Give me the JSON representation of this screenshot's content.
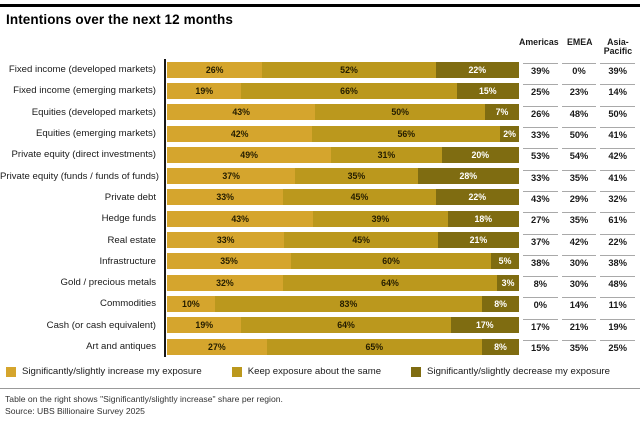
{
  "title": "Intentions over the next 12 months",
  "legend": [
    {
      "label": "Significantly/slightly increase my exposure",
      "color": "#D5A52D"
    },
    {
      "label": "Keep exposure about the same",
      "color": "#BB981D"
    },
    {
      "label": "Significantly/slightly decrease my exposure",
      "color": "#7F6C11"
    }
  ],
  "footnote": "Table on the right shows \"Significantly/slightly increase\" share per region.",
  "source": "Source: UBS Billionaire Survey 2025",
  "chart_data": {
    "type": "bar",
    "orientation": "horizontal-stacked",
    "title": "Intentions over the next 12 months",
    "categories": [
      "Fixed income (developed markets)",
      "Fixed income (emerging markets)",
      "Equities (developed markets)",
      "Equities (emerging markets)",
      "Private equity (direct investments)",
      "Private equity (funds / funds of funds)",
      "Private debt",
      "Hedge funds",
      "Real estate",
      "Infrastructure",
      "Gold / precious metals",
      "Commodities",
      "Cash (or cash equivalent)",
      "Art and antiques"
    ],
    "series": [
      {
        "name": "Significantly/slightly increase my exposure",
        "color": "#D5A52D",
        "values": [
          26,
          19,
          43,
          42,
          49,
          37,
          33,
          43,
          33,
          35,
          32,
          10,
          19,
          27
        ]
      },
      {
        "name": "Keep exposure about the same",
        "color": "#BB981D",
        "values": [
          52,
          66,
          50,
          56,
          31,
          35,
          45,
          39,
          45,
          60,
          64,
          83,
          64,
          65
        ]
      },
      {
        "name": "Significantly/slightly decrease my exposure",
        "color": "#7F6C11",
        "values": [
          22,
          15,
          7,
          2,
          20,
          28,
          22,
          18,
          21,
          5,
          3,
          8,
          17,
          8
        ]
      }
    ],
    "value_suffix": "%",
    "xlim": [
      0,
      100
    ],
    "grid": false,
    "legend_position": "bottom",
    "region_table": {
      "columns": [
        "Americas",
        "EMEA",
        "Asia-Pacific"
      ],
      "description": "Significantly/slightly increase share per region",
      "rows": [
        [
          39,
          0,
          39
        ],
        [
          25,
          23,
          14
        ],
        [
          26,
          48,
          50
        ],
        [
          33,
          50,
          41
        ],
        [
          53,
          54,
          42
        ],
        [
          33,
          35,
          41
        ],
        [
          43,
          29,
          32
        ],
        [
          27,
          35,
          61
        ],
        [
          37,
          42,
          22
        ],
        [
          38,
          30,
          38
        ],
        [
          8,
          30,
          48
        ],
        [
          0,
          14,
          11
        ],
        [
          17,
          21,
          19
        ],
        [
          15,
          35,
          25
        ]
      ]
    }
  }
}
